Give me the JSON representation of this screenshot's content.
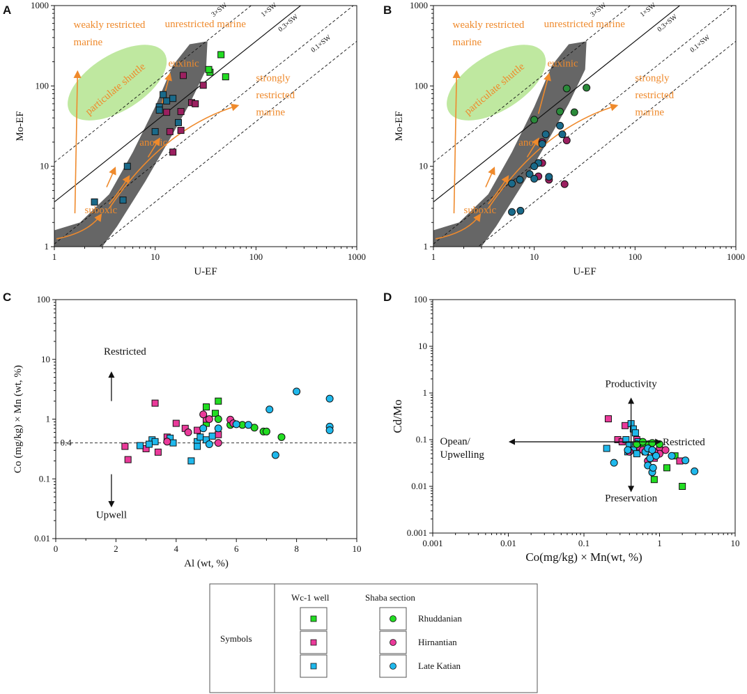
{
  "colors": {
    "green": "#22dd22",
    "magenta": "#ea3a9a",
    "cyan": "#1fb8ec",
    "dark_green": "#2a8a3a",
    "dark_magenta": "#9b2060",
    "dark_cyan": "#1a6a8a",
    "orange": "#ef8a2c",
    "gray_field": "#666666",
    "shuttle_green": "#bfe8a0"
  },
  "chart_data": [
    {
      "id": "A",
      "type": "scatter",
      "letter": "A",
      "xlabel": "U-EF",
      "ylabel": "Mo-EF",
      "xscale": "log",
      "yscale": "log",
      "xlim": [
        1,
        1000
      ],
      "ylim": [
        1,
        1000
      ],
      "xticks": [
        "1",
        "10",
        "100",
        "1000"
      ],
      "yticks": [
        "1",
        "10",
        "100",
        "1000"
      ],
      "sw_lines": [
        {
          "label": "3×SW",
          "factor": 3.1,
          "style": "dashed"
        },
        {
          "label": "1×SW",
          "factor": 1.0,
          "style": "solid"
        },
        {
          "label": "0.3×SW",
          "factor": 0.3,
          "style": "dashed"
        },
        {
          "label": "0.1×SW",
          "factor": 0.1,
          "style": "dashed"
        }
      ],
      "region_labels": {
        "weakly": [
          "weakly restricted",
          "marine"
        ],
        "unrestricted": "unrestricted marine",
        "euxinic": "euxinic",
        "strongly": [
          "strongly",
          "restricted",
          "marine"
        ],
        "shuttle": "particulate shuttle",
        "anoxic": "anoxic",
        "suboxic": "suboxic"
      },
      "series": [
        {
          "name": "Wc-1 Rhuddanian",
          "marker": "square",
          "color": "green",
          "points": [
            [
              45,
              245
            ],
            [
              35,
              148
            ],
            [
              50,
              130
            ],
            [
              34,
              160
            ]
          ]
        },
        {
          "name": "Wc-1 Hirnantian",
          "marker": "square",
          "color": "dark_magenta",
          "points": [
            [
              19,
              135
            ],
            [
              30,
              102
            ],
            [
              13,
              47
            ],
            [
              18,
              48
            ],
            [
              23,
              62
            ],
            [
              25,
              60
            ],
            [
              14,
              27
            ],
            [
              18,
              28
            ],
            [
              15,
              15
            ]
          ]
        },
        {
          "name": "Wc-1 Late Katian",
          "marker": "square",
          "color": "dark_cyan",
          "points": [
            [
              11,
              55
            ],
            [
              12,
              78
            ],
            [
              13,
              65
            ],
            [
              15,
              70
            ],
            [
              10,
              27
            ],
            [
              17,
              35
            ],
            [
              11,
              50
            ],
            [
              5.3,
              10
            ],
            [
              2.5,
              3.6
            ],
            [
              4.8,
              3.8
            ]
          ]
        }
      ]
    },
    {
      "id": "B",
      "type": "scatter",
      "letter": "B",
      "xlabel": "U-EF",
      "ylabel": "Mo-EF",
      "xscale": "log",
      "yscale": "log",
      "xlim": [
        1,
        1000
      ],
      "ylim": [
        1,
        1000
      ],
      "xticks": [
        "1",
        "10",
        "100",
        "1000"
      ],
      "yticks": [
        "1",
        "10",
        "100",
        "1000"
      ],
      "sw_lines": [
        {
          "label": "3×SW",
          "factor": 3.1,
          "style": "dashed"
        },
        {
          "label": "1×SW",
          "factor": 1.0,
          "style": "solid"
        },
        {
          "label": "0.3×SW",
          "factor": 0.3,
          "style": "dashed"
        },
        {
          "label": "0.1×SW",
          "factor": 0.1,
          "style": "dashed"
        }
      ],
      "region_labels": {
        "weakly": [
          "weakly restricted",
          "marine"
        ],
        "unrestricted": "unrestricted marine",
        "euxinic": "euxinic",
        "strongly": [
          "strongly",
          "restricted",
          "marine"
        ],
        "shuttle": "particulate shuttle",
        "anoxic": "anoxic",
        "suboxic": "suboxic"
      },
      "series": [
        {
          "name": "Shaba Rhuddanian",
          "marker": "circle",
          "color": "dark_green",
          "points": [
            [
              21,
              93
            ],
            [
              33,
              95
            ],
            [
              18,
              48
            ],
            [
              25,
              47
            ],
            [
              10,
              38
            ]
          ]
        },
        {
          "name": "Shaba Hirnantian",
          "marker": "circle",
          "color": "dark_magenta",
          "points": [
            [
              12,
              20
            ],
            [
              21,
              21
            ],
            [
              12,
              11
            ],
            [
              11,
              7.5
            ],
            [
              14,
              6.8
            ],
            [
              20,
              6
            ]
          ]
        },
        {
          "name": "Shaba Late Katian",
          "marker": "circle",
          "color": "dark_cyan",
          "points": [
            [
              18,
              32
            ],
            [
              19,
              25
            ],
            [
              13,
              25
            ],
            [
              12,
              19
            ],
            [
              11,
              11
            ],
            [
              10,
              10
            ],
            [
              9,
              8
            ],
            [
              7.2,
              6.8
            ],
            [
              6,
              6.1
            ],
            [
              10,
              7
            ],
            [
              14,
              7.4
            ],
            [
              6,
              2.7
            ],
            [
              7.3,
              2.8
            ]
          ]
        }
      ]
    },
    {
      "id": "C",
      "type": "scatter",
      "letter": "C",
      "xlabel": "Al (wt, %)",
      "ylabel": "Co (mg/kg) × Mn (wt, %)",
      "xscale": "linear",
      "yscale": "log",
      "xlim": [
        0,
        10
      ],
      "ylim": [
        0.01,
        100
      ],
      "xticks": [
        "0",
        "2",
        "4",
        "6",
        "8",
        "10"
      ],
      "yticks": [
        "0.01",
        "0.1",
        "1",
        "10",
        "100"
      ],
      "threshold": {
        "value": 0.4,
        "label": "0.4"
      },
      "annotations": {
        "up": "Restricted",
        "down": "Upwell"
      },
      "series": [
        {
          "name": "Wc-1 Rhuddanian",
          "marker": "square",
          "color": "green",
          "points": [
            [
              5.0,
              1.6
            ],
            [
              5.4,
              2.0
            ],
            [
              5.3,
              1.25
            ],
            [
              5.0,
              0.85
            ]
          ]
        },
        {
          "name": "Wc-1 Hirnantian",
          "marker": "square",
          "color": "magenta",
          "points": [
            [
              3.3,
              1.85
            ],
            [
              2.3,
              0.35
            ],
            [
              2.4,
              0.21
            ],
            [
              3.0,
              0.32
            ],
            [
              3.4,
              0.28
            ],
            [
              3.7,
              0.5
            ],
            [
              4.0,
              0.85
            ],
            [
              4.3,
              0.7
            ],
            [
              4.7,
              0.65
            ],
            [
              5.0,
              1.0
            ],
            [
              5.4,
              0.55
            ]
          ]
        },
        {
          "name": "Wc-1 Late Katian",
          "marker": "square",
          "color": "cyan",
          "points": [
            [
              2.8,
              0.36
            ],
            [
              3.2,
              0.45
            ],
            [
              3.3,
              0.42
            ],
            [
              3.8,
              0.48
            ],
            [
              3.9,
              0.4
            ],
            [
              4.5,
              0.2
            ],
            [
              4.7,
              0.42
            ],
            [
              4.8,
              0.5
            ],
            [
              5.0,
              0.45
            ],
            [
              5.2,
              0.52
            ],
            [
              4.7,
              0.35
            ],
            [
              3.1,
              0.38
            ]
          ]
        },
        {
          "name": "Shaba Rhuddanian",
          "marker": "circle",
          "color": "green",
          "points": [
            [
              5.4,
              1.0
            ],
            [
              5.8,
              0.8
            ],
            [
              6.2,
              0.8
            ],
            [
              6.6,
              0.72
            ],
            [
              6.9,
              0.62
            ],
            [
              7.0,
              0.62
            ],
            [
              7.5,
              0.5
            ]
          ]
        },
        {
          "name": "Shaba Hirnantian",
          "marker": "circle",
          "color": "magenta",
          "points": [
            [
              3.7,
              0.42
            ],
            [
              4.4,
              0.6
            ],
            [
              4.9,
              1.2
            ],
            [
              5.1,
              1.0
            ],
            [
              5.4,
              0.4
            ],
            [
              5.8,
              0.98
            ],
            [
              5.9,
              0.85
            ]
          ]
        },
        {
          "name": "Shaba Late Katian",
          "marker": "circle",
          "color": "cyan",
          "points": [
            [
              8.0,
              2.9
            ],
            [
              9.1,
              2.2
            ],
            [
              7.1,
              1.45
            ],
            [
              6.4,
              0.8
            ],
            [
              6.0,
              0.82
            ],
            [
              9.1,
              0.75
            ],
            [
              9.1,
              0.65
            ],
            [
              5.4,
              0.7
            ],
            [
              4.9,
              0.7
            ],
            [
              5.1,
              0.38
            ],
            [
              7.3,
              0.25
            ]
          ]
        }
      ]
    },
    {
      "id": "D",
      "type": "scatter",
      "letter": "D",
      "xlabel": "Co(mg/kg) × Mn(wt, %)",
      "ylabel": "Cd/Mo",
      "xscale": "log",
      "yscale": "log",
      "xlim": [
        0.001,
        10
      ],
      "ylim": [
        0.001,
        100
      ],
      "xticks": [
        "0.001",
        "0.01",
        "0.1",
        "1",
        "10"
      ],
      "yticks": [
        "0.001",
        "0.01",
        "0.1",
        "1",
        "10",
        "100"
      ],
      "annotations": {
        "up": "Productivity",
        "down": "Preservation",
        "left": [
          "Opean/",
          "Upwelling"
        ],
        "right": "Restricted"
      },
      "series": [
        {
          "name": "Wc-1 Rhuddanian",
          "marker": "square",
          "color": "green",
          "points": [
            [
              0.85,
              0.014
            ],
            [
              1.25,
              0.025
            ],
            [
              2.0,
              0.01
            ],
            [
              1.6,
              0.045
            ],
            [
              0.55,
              0.09
            ],
            [
              0.7,
              0.075
            ]
          ]
        },
        {
          "name": "Wc-1 Hirnantian",
          "marker": "square",
          "color": "magenta",
          "points": [
            [
              0.21,
              0.28
            ],
            [
              0.35,
              0.2
            ],
            [
              0.28,
              0.1
            ],
            [
              0.32,
              0.09
            ],
            [
              0.5,
              0.1
            ],
            [
              0.65,
              0.055
            ],
            [
              0.85,
              0.04
            ],
            [
              1.85,
              0.035
            ],
            [
              0.7,
              0.08
            ],
            [
              1.0,
              0.06
            ],
            [
              0.55,
              0.07
            ]
          ]
        },
        {
          "name": "Wc-1 Late Katian",
          "marker": "square",
          "color": "cyan",
          "points": [
            [
              0.2,
              0.065
            ],
            [
              0.36,
              0.1
            ],
            [
              0.42,
              0.22
            ],
            [
              0.45,
              0.17
            ],
            [
              0.48,
              0.14
            ],
            [
              0.4,
              0.075
            ],
            [
              0.45,
              0.06
            ],
            [
              0.52,
              0.09
            ],
            [
              0.5,
              0.05
            ],
            [
              0.38,
              0.055
            ]
          ]
        },
        {
          "name": "Shaba Rhuddanian",
          "marker": "circle",
          "color": "green",
          "points": [
            [
              0.62,
              0.07
            ],
            [
              0.72,
              0.08
            ],
            [
              0.8,
              0.085
            ],
            [
              1.0,
              0.08
            ],
            [
              0.5,
              0.08
            ],
            [
              0.6,
              0.09
            ]
          ]
        },
        {
          "name": "Shaba Hirnantian",
          "marker": "circle",
          "color": "magenta",
          "points": [
            [
              0.4,
              0.055
            ],
            [
              0.6,
              0.06
            ],
            [
              0.7,
              0.035
            ],
            [
              1.2,
              0.06
            ],
            [
              1.0,
              0.05
            ],
            [
              0.85,
              0.055
            ]
          ]
        },
        {
          "name": "Shaba Late Katian",
          "marker": "circle",
          "color": "cyan",
          "points": [
            [
              0.25,
              0.032
            ],
            [
              0.38,
              0.06
            ],
            [
              0.7,
              0.028
            ],
            [
              0.8,
              0.02
            ],
            [
              0.82,
              0.025
            ],
            [
              1.45,
              0.045
            ],
            [
              2.2,
              0.036
            ],
            [
              2.9,
              0.021
            ],
            [
              0.75,
              0.04
            ],
            [
              0.65,
              0.055
            ],
            [
              0.7,
              0.065
            ],
            [
              0.8,
              0.06
            ],
            [
              0.9,
              0.045
            ]
          ]
        }
      ]
    }
  ],
  "legend": {
    "header_well": "Wc-1 well",
    "header_section": "Shaba section",
    "row_label": "Symbols",
    "rows": [
      {
        "label": "Rhuddanian",
        "color": "green"
      },
      {
        "label": "Hirnantian",
        "color": "magenta"
      },
      {
        "label": "Late Katian",
        "color": "cyan"
      }
    ]
  }
}
